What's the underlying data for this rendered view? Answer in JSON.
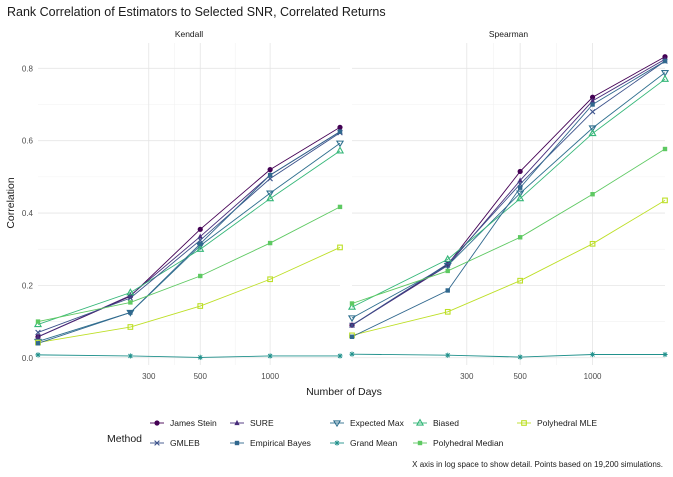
{
  "chart_data": {
    "type": "line",
    "title": "Rank Correlation of Estimators to Selected SNR, Correlated Returns",
    "xlabel": "Number of Days",
    "ylabel": "Correlation",
    "x_scale": "log",
    "x_ticks": [
      300,
      500,
      1000
    ],
    "x_tick_labels": [
      "300",
      "500",
      "1000"
    ],
    "y_ticks": [
      0,
      0.2,
      0.4,
      0.6,
      0.8
    ],
    "y_tick_labels": [
      "0.0",
      "0.2",
      "0.4",
      "0.6",
      "0.8"
    ],
    "xlim": [
      100,
      2000
    ],
    "ylim": [
      -0.02,
      0.87
    ],
    "grid": true,
    "legend_position": "bottom",
    "legend_title": "Method",
    "caption": "X axis in log space to show detail. Points based on 19,200 simulations.",
    "x": [
      100,
      250,
      500,
      1000,
      2000
    ],
    "panels": [
      {
        "name": "Kendall",
        "series": [
          {
            "name": "James Stein",
            "values": [
              0.058,
              0.17,
              0.355,
              0.52,
              0.637
            ]
          },
          {
            "name": "SURE",
            "values": [
              0.058,
              0.172,
              0.335,
              0.505,
              0.625
            ]
          },
          {
            "name": "Expected Max",
            "values": [
              0.045,
              0.125,
              0.31,
              0.455,
              0.593
            ]
          },
          {
            "name": "Biased",
            "values": [
              0.092,
              0.18,
              0.3,
              0.44,
              0.572
            ]
          },
          {
            "name": "Polyhedral MLE",
            "values": [
              0.042,
              0.085,
              0.143,
              0.217,
              0.305
            ]
          },
          {
            "name": "GMLEB",
            "values": [
              0.07,
              0.165,
              0.325,
              0.495,
              0.622
            ]
          },
          {
            "name": "Empirical Bayes",
            "values": [
              0.04,
              0.125,
              0.315,
              0.505,
              0.625
            ]
          },
          {
            "name": "Grand Mean",
            "values": [
              0.008,
              0.005,
              0.001,
              0.005,
              0.005
            ]
          },
          {
            "name": "Polyhedral Median",
            "values": [
              0.1,
              0.153,
              0.226,
              0.317,
              0.417
            ]
          }
        ]
      },
      {
        "name": "Spearman",
        "series": [
          {
            "name": "James Stein",
            "values": [
              0.09,
              0.258,
              0.515,
              0.72,
              0.832
            ]
          },
          {
            "name": "SURE",
            "values": [
              0.09,
              0.255,
              0.49,
              0.71,
              0.825
            ]
          },
          {
            "name": "Expected Max",
            "values": [
              0.11,
              0.255,
              0.455,
              0.635,
              0.788
            ]
          },
          {
            "name": "Biased",
            "values": [
              0.14,
              0.272,
              0.44,
              0.62,
              0.77
            ]
          },
          {
            "name": "Polyhedral MLE",
            "values": [
              0.062,
              0.127,
              0.213,
              0.315,
              0.435
            ]
          },
          {
            "name": "GMLEB",
            "values": [
              0.09,
              0.26,
              0.48,
              0.68,
              0.82
            ]
          },
          {
            "name": "Empirical Bayes",
            "values": [
              0.058,
              0.186,
              0.47,
              0.7,
              0.82
            ]
          },
          {
            "name": "Grand Mean",
            "values": [
              0.01,
              0.007,
              0.002,
              0.009,
              0.009
            ]
          },
          {
            "name": "Polyhedral Median",
            "values": [
              0.15,
              0.24,
              0.333,
              0.452,
              0.577
            ]
          }
        ]
      }
    ],
    "legend_rows": [
      [
        "James Stein",
        "SURE",
        "Expected Max",
        "Biased",
        "Polyhedral MLE"
      ],
      [
        "GMLEB",
        "Empirical Bayes",
        "Grand Mean",
        "Polyhedral Median"
      ]
    ]
  },
  "styles": {
    "James Stein": {
      "color": "#440154",
      "shape": "circle"
    },
    "SURE": {
      "color": "#472c7a",
      "shape": "triangle"
    },
    "Expected Max": {
      "color": "#2e6f8e",
      "shape": "triangle-down"
    },
    "Biased": {
      "color": "#35b779",
      "shape": "triangle-open"
    },
    "Polyhedral MLE": {
      "color": "#bddf26",
      "shape": "square-open"
    },
    "GMLEB": {
      "color": "#3b528b",
      "shape": "x"
    },
    "Empirical Bayes": {
      "color": "#31688e",
      "shape": "square"
    },
    "Grand Mean": {
      "color": "#21918c",
      "shape": "star"
    },
    "Polyhedral Median": {
      "color": "#5ec962",
      "shape": "square"
    }
  }
}
